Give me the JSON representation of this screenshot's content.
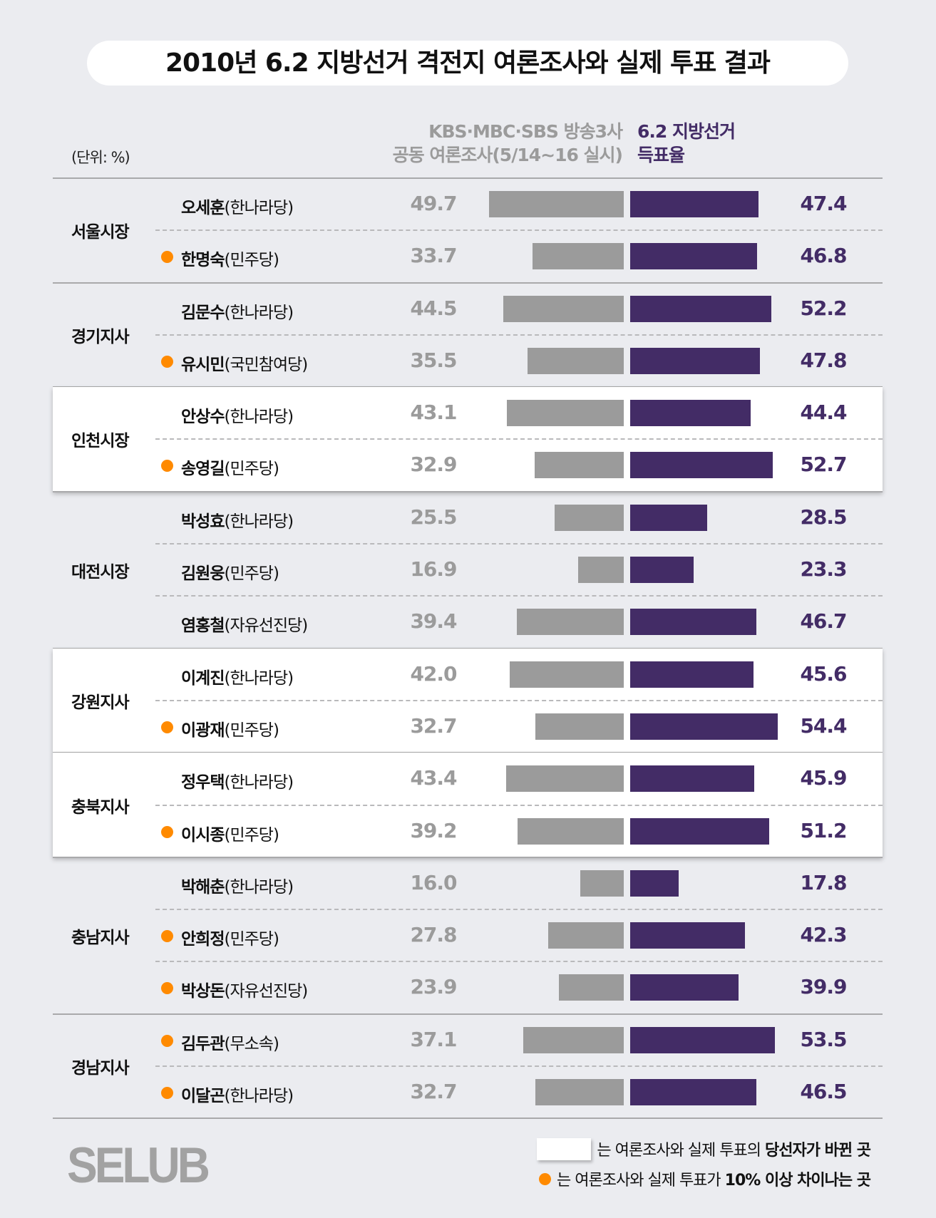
{
  "chart_data": {
    "type": "bar",
    "title": "2010년 6.2 지방선거 격전지 여론조사와 실제 투표 결과",
    "unit_label": "(단위: %)",
    "series_labels": {
      "poll": [
        "KBS·MBC·SBS 방송3사",
        "공동 여론조사(5/14~16 실시)"
      ],
      "vote": [
        "6.2 지방선거",
        "득표율"
      ]
    },
    "colors": {
      "poll": "#9b9b9b",
      "vote": "#432c66",
      "dot": "#ff8a00",
      "highlight": "#ffffff"
    },
    "groups": [
      {
        "region": "서울시장",
        "highlight": false,
        "candidates": [
          {
            "name": "오세훈",
            "party": "(한나라당)",
            "poll": 49.7,
            "vote": 47.4,
            "dot": false
          },
          {
            "name": "한명숙",
            "party": "(민주당)",
            "poll": 33.7,
            "vote": 46.8,
            "dot": true
          }
        ]
      },
      {
        "region": "경기지사",
        "highlight": false,
        "candidates": [
          {
            "name": "김문수",
            "party": "(한나라당)",
            "poll": 44.5,
            "vote": 52.2,
            "dot": false
          },
          {
            "name": "유시민",
            "party": "(국민참여당)",
            "poll": 35.5,
            "vote": 47.8,
            "dot": true
          }
        ]
      },
      {
        "region": "인천시장",
        "highlight": true,
        "candidates": [
          {
            "name": "안상수",
            "party": "(한나라당)",
            "poll": 43.1,
            "vote": 44.4,
            "dot": false
          },
          {
            "name": "송영길",
            "party": "(민주당)",
            "poll": 32.9,
            "vote": 52.7,
            "dot": true
          }
        ]
      },
      {
        "region": "대전시장",
        "highlight": false,
        "candidates": [
          {
            "name": "박성효",
            "party": "(한나라당)",
            "poll": 25.5,
            "vote": 28.5,
            "dot": false
          },
          {
            "name": "김원웅",
            "party": "(민주당)",
            "poll": 16.9,
            "vote": 23.3,
            "dot": false
          },
          {
            "name": "염홍철",
            "party": "(자유선진당)",
            "poll": 39.4,
            "vote": 46.7,
            "dot": false
          }
        ]
      },
      {
        "region": "강원지사",
        "highlight": true,
        "candidates": [
          {
            "name": "이계진",
            "party": "(한나라당)",
            "poll": 42.0,
            "vote": 45.6,
            "dot": false
          },
          {
            "name": "이광재",
            "party": "(민주당)",
            "poll": 32.7,
            "vote": 54.4,
            "dot": true
          }
        ]
      },
      {
        "region": "충북지사",
        "highlight": true,
        "candidates": [
          {
            "name": "정우택",
            "party": "(한나라당)",
            "poll": 43.4,
            "vote": 45.9,
            "dot": false
          },
          {
            "name": "이시종",
            "party": "(민주당)",
            "poll": 39.2,
            "vote": 51.2,
            "dot": true
          }
        ]
      },
      {
        "region": "충남지사",
        "highlight": false,
        "candidates": [
          {
            "name": "박해춘",
            "party": "(한나라당)",
            "poll": 16.0,
            "vote": 17.8,
            "dot": false
          },
          {
            "name": "안희정",
            "party": "(민주당)",
            "poll": 27.8,
            "vote": 42.3,
            "dot": true
          },
          {
            "name": "박상돈",
            "party": "(자유선진당)",
            "poll": 23.9,
            "vote": 39.9,
            "dot": true
          }
        ]
      },
      {
        "region": "경남지사",
        "highlight": false,
        "candidates": [
          {
            "name": "김두관",
            "party": "(무소속)",
            "poll": 37.1,
            "vote": 53.5,
            "dot": true
          },
          {
            "name": "이달곤",
            "party": "(한나라당)",
            "poll": 32.7,
            "vote": 46.5,
            "dot": true
          }
        ]
      }
    ]
  },
  "legend": {
    "white_text": "는 여론조사와 실제 투표의 ",
    "white_bold": "당선자가 바뀐 곳",
    "dot_text": "는 여론조사와 실제 투표가 ",
    "dot_bold": "10% 이상 차이나는 곳"
  },
  "logo": "SELUB"
}
